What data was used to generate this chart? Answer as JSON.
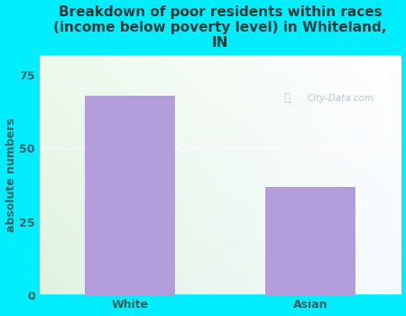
{
  "categories": [
    "White",
    "Asian"
  ],
  "values": [
    68,
    37
  ],
  "bar_color": "#b39ddb",
  "title": "Breakdown of poor residents within races\n(income below poverty level) in Whiteland,\nIN",
  "ylabel": "absolute numbers",
  "ylim": [
    0,
    82
  ],
  "yticks": [
    0,
    25,
    50,
    75
  ],
  "background_color": "#00eeff",
  "plot_bg_color_topleft": "#e8f5e9",
  "plot_bg_color_bottomleft": "#d4edda",
  "plot_bg_color_right": "#f0f8ff",
  "title_color": "#1a3a3a",
  "ylabel_color": "#2c5f5f",
  "tick_color": "#2c5f5f",
  "watermark": "City-Data.com",
  "title_fontsize": 11,
  "ylabel_fontsize": 9,
  "tick_fontsize": 9,
  "grid_color": "#cccccc"
}
